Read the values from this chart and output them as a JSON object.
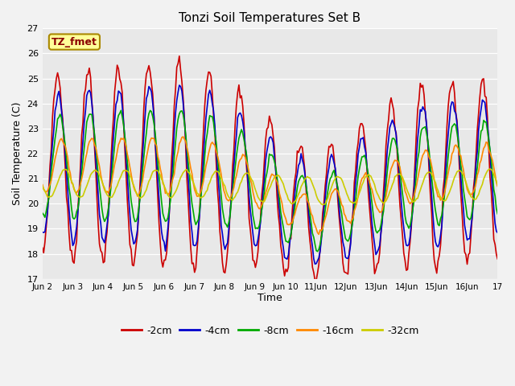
{
  "title": "Tonzi Soil Temperatures Set B",
  "xlabel": "Time",
  "ylabel": "Soil Temperature (C)",
  "ylim": [
    17.0,
    27.0
  ],
  "yticks": [
    17.0,
    18.0,
    19.0,
    20.0,
    21.0,
    22.0,
    23.0,
    24.0,
    25.0,
    26.0,
    27.0
  ],
  "xtick_labels": [
    "Jun 2",
    "Jun 3",
    "Jun 4",
    "Jun 5",
    "Jun 6",
    "Jun 7",
    "Jun 8",
    "Jun 9",
    "Jun 10",
    "11Jun",
    "12Jun",
    "13Jun",
    "14Jun",
    "15Jun",
    "16Jun",
    "17"
  ],
  "series_order": [
    "-2cm",
    "-4cm",
    "-8cm",
    "-16cm",
    "-32cm"
  ],
  "colors": {
    "-2cm": "#cc0000",
    "-4cm": "#0000cc",
    "-8cm": "#00aa00",
    "-16cm": "#ff8800",
    "-32cm": "#cccc00"
  },
  "linewidth": 1.2,
  "annotation_text": "TZ_fmet",
  "background_color": "#e8e8e8",
  "legend_labels": [
    "-2cm",
    "-4cm",
    "-8cm",
    "-16cm",
    "-32cm"
  ],
  "legend_colors": [
    "#cc0000",
    "#0000cc",
    "#00aa00",
    "#ff8800",
    "#cccc00"
  ]
}
